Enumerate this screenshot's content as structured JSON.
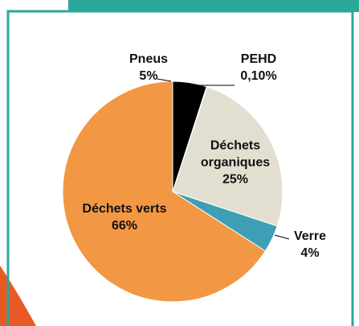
{
  "chart_data": {
    "type": "pie",
    "categories": [
      "Pneus",
      "PEHD",
      "Déchets organiques",
      "Verre",
      "Déchets verts"
    ],
    "values": [
      5,
      0.1,
      25,
      4,
      66
    ],
    "value_labels": [
      "5%",
      "0,10%",
      "25%",
      "4%",
      "66%"
    ],
    "colors": [
      "#000000",
      "#c0504d",
      "#e3dfd0",
      "#3d9fb6",
      "#f29744"
    ]
  }
}
